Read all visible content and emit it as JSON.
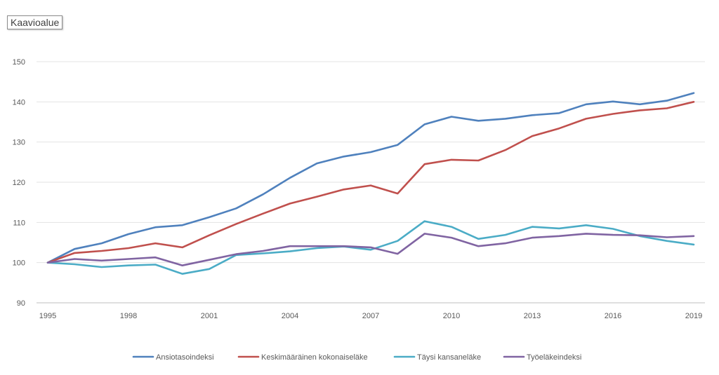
{
  "chart_area_label": "Kaavioalue",
  "chart_data": {
    "type": "line",
    "title": "",
    "xlabel": "",
    "ylabel": "",
    "x": [
      1995,
      1996,
      1997,
      1998,
      1999,
      2000,
      2001,
      2002,
      2003,
      2004,
      2005,
      2006,
      2007,
      2008,
      2009,
      2010,
      2011,
      2012,
      2013,
      2014,
      2015,
      2016,
      2017,
      2018,
      2019
    ],
    "x_ticks": [
      "1995",
      "1998",
      "2001",
      "2004",
      "2007",
      "2010",
      "2013",
      "2016",
      "2019"
    ],
    "ylim": [
      90,
      150
    ],
    "y_ticks": [
      90,
      100,
      110,
      120,
      130,
      140,
      150
    ],
    "grid": "horizontal",
    "legend_position": "bottom",
    "series": [
      {
        "name": "Ansiotasoindeksi",
        "color": "#4f81bd",
        "values": [
          100,
          103.4,
          104.8,
          107.1,
          108.8,
          109.3,
          111.3,
          113.5,
          117,
          121.1,
          124.7,
          126.4,
          127.5,
          129.3,
          134.4,
          136.3,
          135.3,
          135.8,
          136.7,
          137.2,
          139.4,
          140.1,
          139.4,
          140.3,
          142.2
        ]
      },
      {
        "name": "Keskimääräinen kokonaiseläke",
        "color": "#c0504d",
        "values": [
          100,
          102.4,
          102.9,
          103.6,
          104.8,
          103.8,
          106.8,
          109.6,
          112.2,
          114.7,
          116.4,
          118.2,
          119.2,
          117.2,
          124.5,
          125.6,
          125.4,
          128,
          131.5,
          133.4,
          135.8,
          137,
          137.9,
          138.4,
          140
        ]
      },
      {
        "name": "Täysi kansaneläke",
        "color": "#4bacc6",
        "values": [
          100,
          99.6,
          98.9,
          99.3,
          99.5,
          97.2,
          98.4,
          101.9,
          102.3,
          102.8,
          103.6,
          104,
          103.2,
          105.4,
          110.3,
          108.9,
          105.9,
          106.9,
          108.9,
          108.5,
          109.3,
          108.4,
          106.6,
          105.4,
          104.5
        ]
      },
      {
        "name": "Työeläkeindeksi",
        "color": "#8064a2",
        "values": [
          100,
          100.9,
          100.5,
          100.9,
          101.3,
          99.3,
          100.7,
          102.1,
          102.9,
          104.1,
          104.1,
          104.1,
          103.8,
          102.2,
          107.2,
          106.2,
          104.1,
          104.8,
          106.2,
          106.6,
          107.2,
          106.9,
          106.8,
          106.3,
          106.6
        ]
      }
    ]
  }
}
